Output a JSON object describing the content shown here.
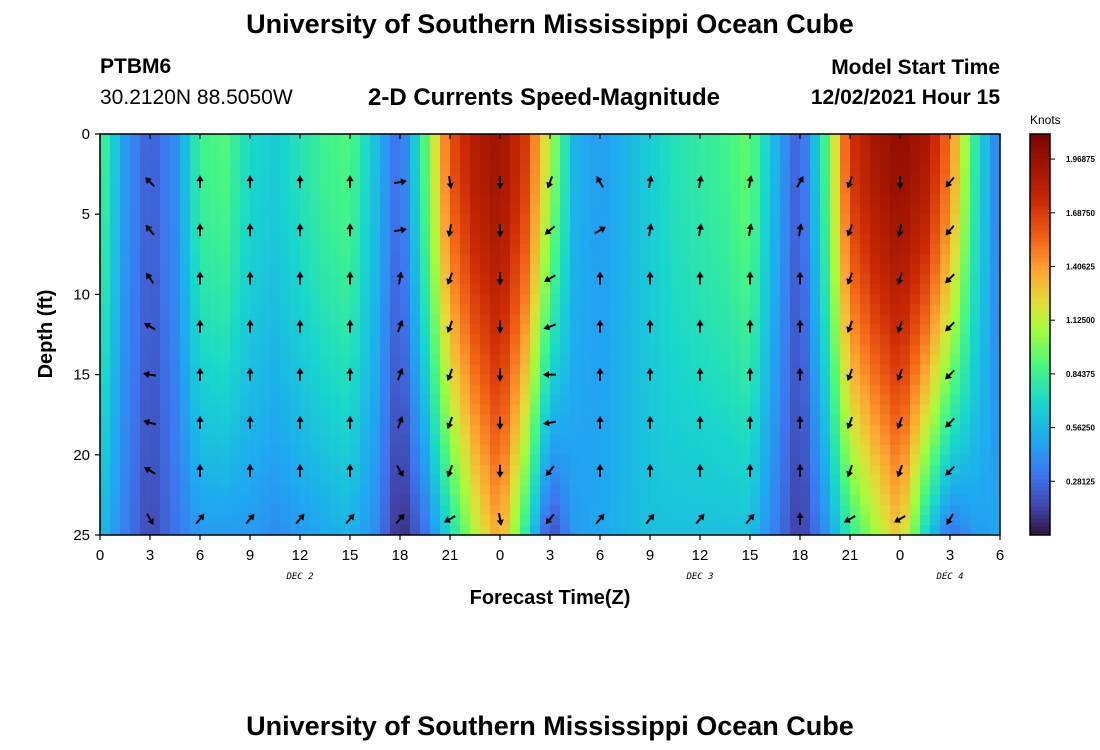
{
  "header": {
    "title": "University of Southern Mississippi Ocean Cube",
    "station_id": "PTBM6",
    "station_coords": "30.2120N  88.5050W",
    "subtitle": "2-D Currents Speed-Magnitude",
    "model_start_label": "Model Start Time",
    "model_start_value": "12/02/2021 Hour 15"
  },
  "footer": {
    "title": "University of Southern Mississippi Ocean Cube"
  },
  "chart_data": {
    "type": "heatmap",
    "title": "2-D Currents Speed-Magnitude",
    "xlabel": "Forecast Time(Z)",
    "ylabel": "Depth (ft)",
    "x_tick_labels": [
      "0",
      "3",
      "6",
      "9",
      "12",
      "15",
      "18",
      "21",
      "0",
      "3",
      "6",
      "9",
      "12",
      "15",
      "18",
      "21",
      "0",
      "3",
      "6"
    ],
    "x_hours": [
      0,
      3,
      6,
      9,
      12,
      15,
      18,
      21,
      24,
      27,
      30,
      33,
      36,
      39,
      42,
      45,
      48,
      51,
      54
    ],
    "date_labels": [
      {
        "label": "DEC 2",
        "hour": 12
      },
      {
        "label": "DEC 3",
        "hour": 36
      },
      {
        "label": "DEC 4",
        "hour": 51
      }
    ],
    "y_ticks": [
      0,
      5,
      10,
      15,
      20,
      25
    ],
    "ylim": [
      25,
      0
    ],
    "xlim": [
      0,
      54
    ],
    "colorbar": {
      "unit": "Knots",
      "min": 0,
      "max": 2.1,
      "tick_labels": [
        "1.96875",
        "1.68750",
        "1.40625",
        "1.12500",
        "0.84375",
        "0.56250",
        "0.28125"
      ],
      "ticks": [
        1.96875,
        1.6875,
        1.40625,
        1.125,
        0.84375,
        0.5625,
        0.28125
      ]
    },
    "speed_profile_hours": [
      0,
      1.5,
      3,
      4.5,
      6,
      7.5,
      9,
      10.5,
      12,
      13.5,
      15,
      16.5,
      18,
      19.5,
      21,
      22.5,
      24,
      25.5,
      27,
      28.5,
      30,
      31.5,
      33,
      34.5,
      36,
      37.5,
      39,
      40.5,
      42,
      43.5,
      45,
      46.5,
      48,
      49.5,
      51,
      52.5,
      54
    ],
    "speed_top_knots": [
      0.9,
      0.45,
      0.22,
      0.4,
      0.85,
      0.9,
      0.7,
      0.65,
      0.75,
      0.85,
      0.9,
      0.6,
      0.25,
      0.9,
      1.6,
      1.85,
      1.95,
      1.7,
      1.1,
      0.55,
      0.45,
      0.55,
      0.65,
      0.75,
      0.8,
      0.85,
      0.95,
      0.55,
      0.2,
      0.85,
      1.7,
      1.9,
      2.0,
      1.9,
      1.5,
      0.8,
      0.3
    ],
    "speed_bottom_knots": [
      0.6,
      0.35,
      0.15,
      0.3,
      0.45,
      0.45,
      0.45,
      0.4,
      0.45,
      0.5,
      0.55,
      0.4,
      0.05,
      0.3,
      0.7,
      1.1,
      1.4,
      0.8,
      0.15,
      0.45,
      0.5,
      0.55,
      0.6,
      0.6,
      0.6,
      0.6,
      0.6,
      0.35,
      0.1,
      0.4,
      0.8,
      1.05,
      1.3,
      0.7,
      0.3,
      0.45,
      0.5
    ],
    "arrow_hours": [
      3,
      6,
      9,
      12,
      15,
      18,
      21,
      24,
      27,
      30,
      33,
      36,
      39,
      42,
      45,
      48,
      51
    ],
    "arrow_depths": [
      3,
      6,
      9,
      12,
      15,
      18,
      21,
      24
    ],
    "arrow_direction_deg": [
      [
        315,
        0,
        0,
        0,
        0,
        80,
        170,
        180,
        200,
        330,
        10,
        10,
        10,
        30,
        200,
        180,
        220
      ],
      [
        320,
        0,
        0,
        0,
        0,
        80,
        190,
        180,
        230,
        60,
        10,
        10,
        10,
        10,
        200,
        190,
        220
      ],
      [
        325,
        0,
        0,
        0,
        0,
        10,
        200,
        180,
        240,
        0,
        0,
        0,
        0,
        0,
        200,
        200,
        225
      ],
      [
        300,
        0,
        0,
        0,
        0,
        20,
        200,
        180,
        250,
        0,
        0,
        0,
        0,
        0,
        200,
        200,
        225
      ],
      [
        280,
        0,
        0,
        0,
        0,
        20,
        200,
        180,
        270,
        0,
        0,
        0,
        0,
        0,
        200,
        200,
        225
      ],
      [
        285,
        0,
        0,
        0,
        0,
        20,
        200,
        180,
        260,
        0,
        0,
        0,
        0,
        0,
        200,
        200,
        225
      ],
      [
        300,
        0,
        0,
        0,
        0,
        150,
        200,
        180,
        220,
        0,
        0,
        0,
        0,
        0,
        200,
        200,
        225
      ],
      [
        150,
        40,
        40,
        40,
        40,
        40,
        240,
        170,
        220,
        40,
        40,
        40,
        40,
        0,
        240,
        240,
        210
      ]
    ]
  }
}
